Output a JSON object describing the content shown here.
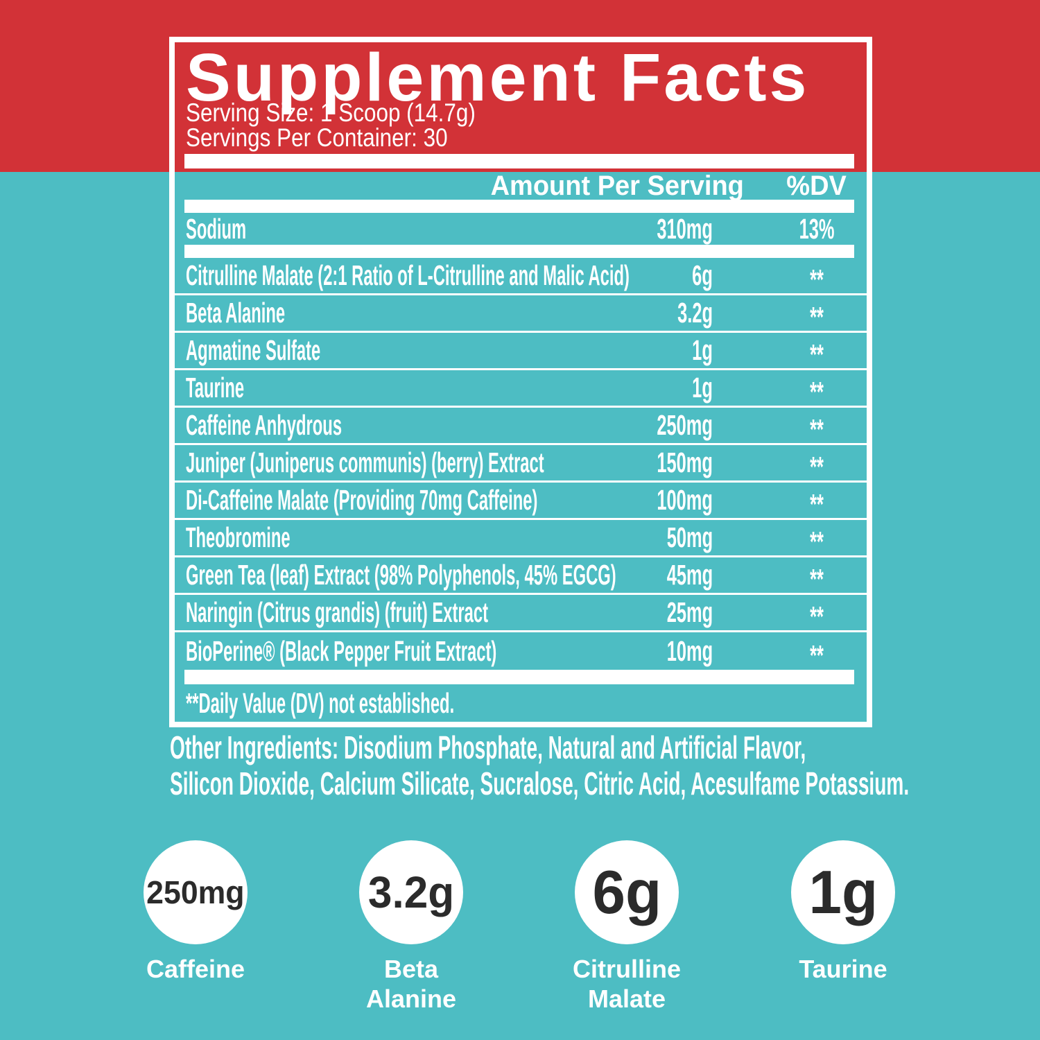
{
  "colors": {
    "teal_background": "#4dbdc3",
    "red_band": "#d23237",
    "panel_border": "#ffffff",
    "text": "#ffffff",
    "circle_text": "#2b2b2b"
  },
  "panel": {
    "title": "Supplement Facts",
    "serving_size": "Serving Size: 1 Scoop (14.7g)",
    "servings_per_container": "Servings Per Container: 30",
    "header": {
      "amount": "Amount Per Serving",
      "dv": "%DV"
    },
    "sodium_row": {
      "name": "Sodium",
      "amount": "310mg",
      "dv": "13%"
    },
    "rows": [
      {
        "name": "Citrulline Malate (2:1 Ratio of L-Citrulline and Malic Acid)",
        "amount": "6g",
        "dv": "**"
      },
      {
        "name": "Beta Alanine",
        "amount": "3.2g",
        "dv": "**"
      },
      {
        "name": "Agmatine Sulfate",
        "amount": "1g",
        "dv": "**"
      },
      {
        "name": "Taurine",
        "amount": "1g",
        "dv": "**"
      },
      {
        "name": "Caffeine Anhydrous",
        "amount": "250mg",
        "dv": "**"
      },
      {
        "name": "Juniper (Juniperus communis) (berry) Extract",
        "amount": "150mg",
        "dv": "**"
      },
      {
        "name": "Di-Caffeine Malate (Providing 70mg Caffeine)",
        "amount": "100mg",
        "dv": "**"
      },
      {
        "name": "Theobromine",
        "amount": "50mg",
        "dv": "**"
      },
      {
        "name": "Green Tea (leaf) Extract (98% Polyphenols, 45% EGCG)",
        "amount": "45mg",
        "dv": "**"
      },
      {
        "name": "Naringin (Citrus grandis) (fruit) Extract",
        "amount": "25mg",
        "dv": "**"
      },
      {
        "name": "BioPerine® (Black Pepper Fruit Extract)",
        "amount": "10mg",
        "dv": "**"
      }
    ],
    "footnote": "**Daily Value (DV) not established."
  },
  "other_ingredients": {
    "line1": "Other Ingredients: Disodium Phosphate, Natural and Artificial Flavor,",
    "line2": "Silicon Dioxide, Calcium Silicate, Sucralose, Citric Acid, Acesulfame Potassium."
  },
  "highlights": [
    {
      "amount": "250mg",
      "label": "Caffeine"
    },
    {
      "amount": "3.2g",
      "label": "Beta\nAlanine"
    },
    {
      "amount": "6g",
      "label": "Citrulline\nMalate"
    },
    {
      "amount": "1g",
      "label": "Taurine"
    }
  ]
}
